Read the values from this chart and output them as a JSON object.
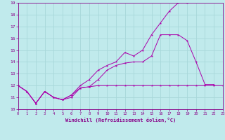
{
  "xlabel": "Windchill (Refroidissement éolien,°C)",
  "background_color": "#c0eaec",
  "grid_color": "#a8d8da",
  "line_color": "#aa00aa",
  "xlim": [
    0,
    23
  ],
  "ylim": [
    10,
    19
  ],
  "xticks": [
    0,
    1,
    2,
    3,
    4,
    5,
    6,
    7,
    8,
    9,
    10,
    11,
    12,
    13,
    14,
    15,
    16,
    17,
    18,
    19,
    20,
    21,
    22,
    23
  ],
  "yticks": [
    10,
    11,
    12,
    13,
    14,
    15,
    16,
    17,
    18,
    19
  ],
  "line1_x": [
    0,
    1,
    2,
    3,
    4,
    5,
    6,
    7,
    8,
    9,
    10,
    11,
    12,
    13,
    14,
    15,
    16,
    17,
    18,
    19,
    20,
    21,
    22,
    23
  ],
  "line1_y": [
    12.0,
    11.5,
    10.5,
    11.5,
    11.0,
    10.8,
    11.0,
    11.8,
    11.9,
    12.0,
    12.0,
    12.0,
    12.0,
    12.0,
    12.0,
    12.0,
    12.0,
    12.0,
    12.0,
    12.0,
    12.0,
    12.0,
    12.0,
    12.0
  ],
  "line2_x": [
    0,
    1,
    2,
    3,
    4,
    5,
    6,
    7,
    8,
    9,
    10,
    11,
    12,
    13,
    14,
    15,
    16,
    17,
    18,
    19,
    20,
    21,
    22
  ],
  "line2_y": [
    12.0,
    11.5,
    10.5,
    11.5,
    11.0,
    10.8,
    11.2,
    11.8,
    11.9,
    12.5,
    13.3,
    13.7,
    13.9,
    14.0,
    14.0,
    14.5,
    16.3,
    16.3,
    16.3,
    15.8,
    14.0,
    12.1,
    12.1
  ],
  "line3_x": [
    0,
    1,
    2,
    3,
    4,
    5,
    6,
    7,
    8,
    9,
    10,
    11,
    12,
    13,
    14,
    15,
    16,
    17,
    18,
    19
  ],
  "line3_y": [
    12.0,
    11.5,
    10.5,
    11.5,
    11.0,
    10.8,
    11.2,
    12.0,
    12.5,
    13.3,
    13.7,
    14.0,
    14.8,
    14.5,
    15.0,
    16.3,
    17.3,
    18.3,
    19.0,
    19.0
  ]
}
